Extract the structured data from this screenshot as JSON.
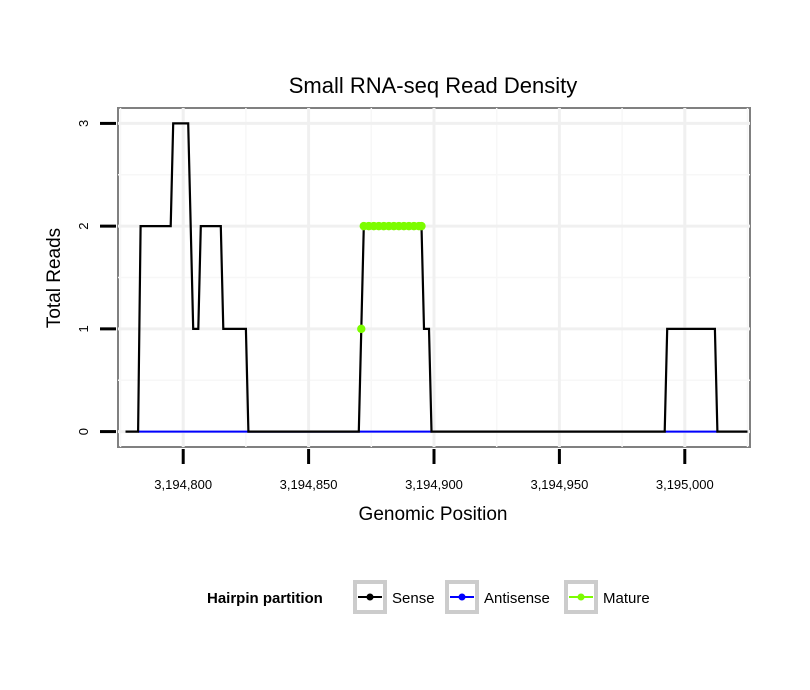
{
  "chart_data": {
    "type": "line",
    "title": "Small RNA-seq Read Density",
    "xlabel": "Genomic Position",
    "ylabel": "Total Reads",
    "xlim": [
      3194774,
      3195026
    ],
    "ylim": [
      -0.15,
      3.15
    ],
    "x_ticks": [
      3194800,
      3194850,
      3194900,
      3194950,
      3195000
    ],
    "x_tick_labels": [
      "3,194,800",
      "3,194,850",
      "3,194,900",
      "3,194,950",
      "3,195,000"
    ],
    "y_ticks": [
      0,
      1,
      2,
      3
    ],
    "y_tick_labels": [
      "0",
      "1",
      "2",
      "3"
    ],
    "grid": true,
    "legend": {
      "title": "Hairpin partition",
      "position": "bottom",
      "entries": [
        "Sense",
        "Antisense",
        "Mature"
      ]
    },
    "series": [
      {
        "name": "Sense",
        "color": "#000000",
        "points": [
          [
            3194777,
            0
          ],
          [
            3194782,
            0
          ],
          [
            3194783,
            2
          ],
          [
            3194795,
            2
          ],
          [
            3194796,
            3
          ],
          [
            3194802,
            3
          ],
          [
            3194804,
            1
          ],
          [
            3194806,
            1
          ],
          [
            3194807,
            2
          ],
          [
            3194815,
            2
          ],
          [
            3194816,
            1
          ],
          [
            3194825,
            1
          ],
          [
            3194826,
            0
          ],
          [
            3194870,
            0
          ],
          [
            3194872,
            2
          ],
          [
            3194895,
            2
          ],
          [
            3194896,
            1
          ],
          [
            3194898,
            1
          ],
          [
            3194899,
            0
          ],
          [
            3194992,
            0
          ],
          [
            3194993,
            1
          ],
          [
            3195012,
            1
          ],
          [
            3195013,
            0
          ],
          [
            3195025,
            0
          ]
        ]
      },
      {
        "name": "Antisense",
        "color": "#0000ff",
        "points": [
          [
            3194782,
            0
          ],
          [
            3194899,
            0
          ],
          [
            3194992,
            0
          ],
          [
            3195013,
            0
          ]
        ]
      },
      {
        "name": "Mature",
        "color": "#7cfc00",
        "points": [
          [
            3194871,
            1
          ],
          [
            3194872,
            2
          ],
          [
            3194874,
            2
          ],
          [
            3194876,
            2
          ],
          [
            3194878,
            2
          ],
          [
            3194880,
            2
          ],
          [
            3194882,
            2
          ],
          [
            3194884,
            2
          ],
          [
            3194886,
            2
          ],
          [
            3194888,
            2
          ],
          [
            3194890,
            2
          ],
          [
            3194892,
            2
          ],
          [
            3194894,
            2
          ],
          [
            3194895,
            2
          ]
        ]
      }
    ]
  }
}
